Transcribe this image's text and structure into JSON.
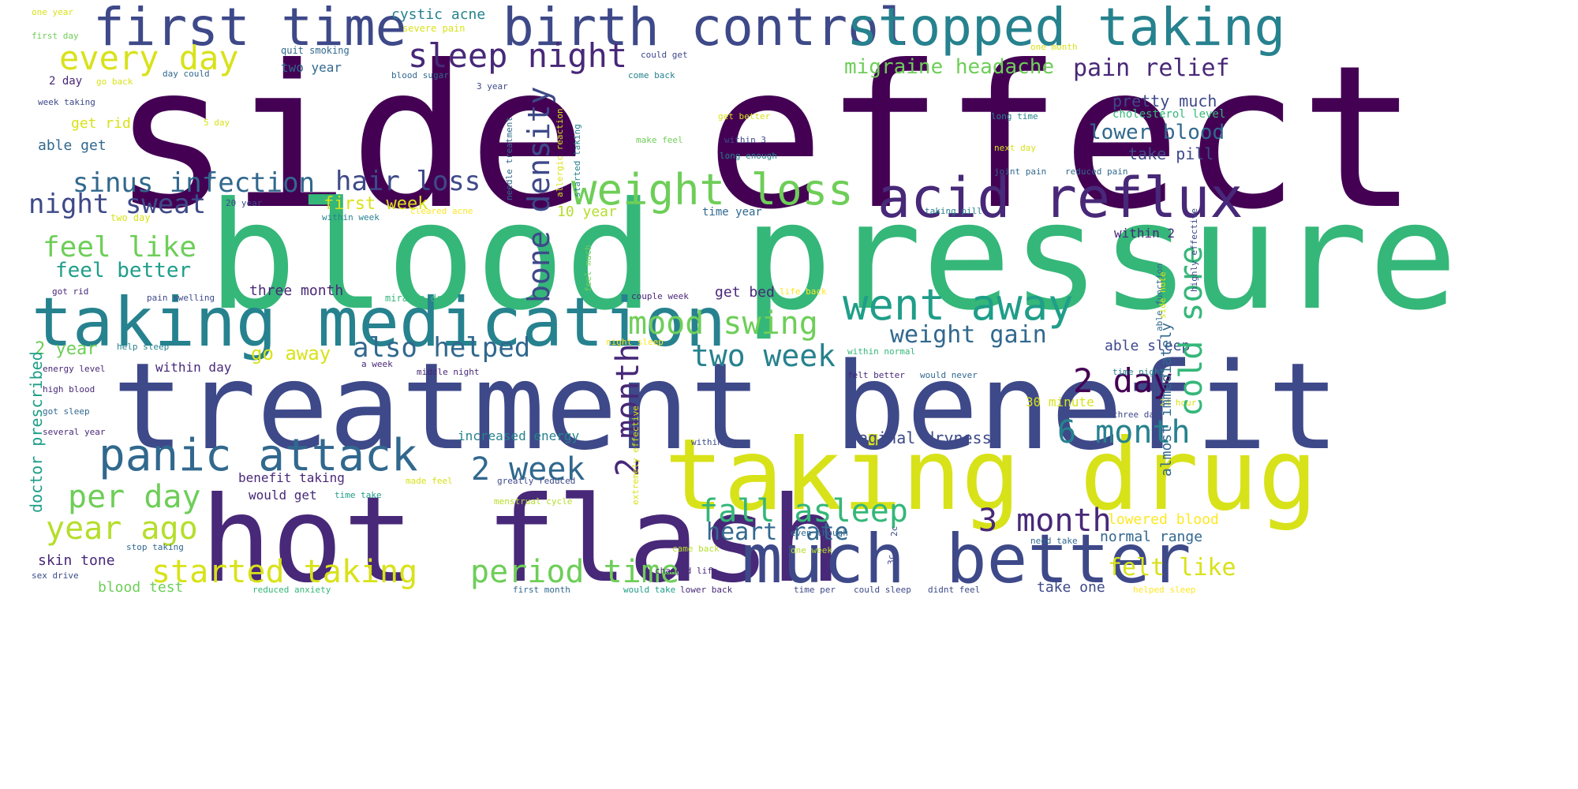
{
  "words": {
    "side_effect": "side effect",
    "blood_pressure": "blood pressure",
    "treatment_benefit": "treatment benefit",
    "hot_flash": "hot flash",
    "taking_drug": "taking drug",
    "much_better": "much better",
    "taking_medication": "taking medication",
    "first_time": "first time",
    "birth_control": "birth control",
    "stopped_taking": "stopped taking",
    "acid_reflux": "acid reflux",
    "weight_loss": "weight loss",
    "panic_attack": "panic attack",
    "went_away": "went away",
    "sleep_night": "sleep night",
    "every_day": "every day",
    "sinus_infection": "sinus infection",
    "hair_loss": "hair loss",
    "night_sweat": "night sweat",
    "feel_like": "feel like",
    "feel_better": "feel better",
    "mood_swing": "mood swing",
    "also_helped": "also helped",
    "two_week": "two week",
    "weight_gain": "weight gain",
    "two_day": "2 day",
    "six_month": "6 month",
    "three_month": "3 month",
    "two_week_num": "2 week",
    "per_day": "per day",
    "year_ago": "year ago",
    "started_taking": "started taking",
    "period_time": "period time",
    "fall_asleep": "fall asleep",
    "heart_rate": "heart rate",
    "felt_like": "felt like",
    "migraine_headache": "migraine headache",
    "pain_relief": "pain relief",
    "pretty_much": "pretty much",
    "lower_blood": "lower blood",
    "take_pill": "take pill",
    "cholesterol_level": "cholesterol level",
    "bone_density": "bone density",
    "two_month": "2 month",
    "cold_sore": "cold sore",
    "first_week": "first week",
    "two_year": "2 year",
    "go_away": "go away",
    "within_day": "within day",
    "able_sleep": "able sleep",
    "increased_energy": "increased energy",
    "vaginal_dryness": "vaginal dryness",
    "benefit_taking": "benefit taking",
    "would_get": "would get",
    "lowered_blood": "lowered blood",
    "normal_range": "normal range",
    "cystic_acne": "cystic acne",
    "severe_pain": "severe pain",
    "two_year_word": "two year",
    "get_rid": "get rid",
    "able_get": "able get",
    "three_month_word": "three month",
    "get_bed": "get bed",
    "skin_tone": "skin tone",
    "blood_test": "blood test",
    "doctor_prescribed": "doctor prescribed",
    "almost_immediately": "almost immediately",
    "thirty_minute": "30 minute",
    "within_2": "within 2",
    "ten_year": "10 year",
    "time_year": "time year",
    "take_one": "take one",
    "one_year": "one year",
    "first_day": "first day",
    "quit_smoking": "quit smoking",
    "blood_sugar": "blood sugar",
    "could_get": "could get",
    "come_back": "come back",
    "one_month": "one month",
    "go_back": "go back",
    "two_day_small": "2 day",
    "day_could": "day could",
    "three_year": "3 year",
    "week_taking": "week taking",
    "five_day": "5 day",
    "get_better": "get better",
    "long_time": "long time",
    "make_feel": "make feel",
    "within_3": "within 3",
    "long_enough": "long enough",
    "next_day": "next day",
    "joint_pain": "joint pain",
    "reduced_pain": "reduced pain",
    "taking_pill": "taking pill",
    "cleared_acne": "cleared acne",
    "within_week": "within week",
    "twenty_year": "20 year",
    "two_day_word": "two day",
    "life_back": "life back",
    "couple_week": "couple week",
    "miracle_drug": "miracle drug",
    "pain_swelling": "pain swelling",
    "got_rid": "got rid",
    "energy_level": "energy level",
    "high_blood": "high blood",
    "got_sleep": "got sleep",
    "several_year": "several year",
    "help_sleep": "help sleep",
    "middle_night": "middle night",
    "a_week": "a week",
    "night_sleep": "night sleep",
    "felt_better": "felt better",
    "would_never": "would never",
    "within_normal": "within normal",
    "time_night": "time night",
    "within_hour": "within hour",
    "three_day": "three day",
    "twentyfour_hour": "24 hour",
    "side_note": "side note",
    "able_function": "able function",
    "highly_effective": "highly effective",
    "feel_much": "feel much",
    "stop_taking": "stop taking",
    "sex_drive": "sex drive",
    "made_feel": "made feel",
    "time_take": "time take",
    "greatly_reduced": "greatly reduced",
    "menstrual_cycle": "menstrual cycle",
    "even_though": "even though",
    "one_week": "one week",
    "came_back": "came back",
    "need_take": "need take",
    "changed_life": "changed life",
    "reduced_anxiety": "reduced anxiety",
    "first_month": "first month",
    "would_take": "would take",
    "lower_back": "lower back",
    "time_per": "time per",
    "could_sleep": "could sleep",
    "didnt_feel": "didnt feel",
    "helped_sleep": "helped sleep",
    "extremely_effective": "extremely effective",
    "allergic_reaction": "allergic reaction",
    "started_taking_v": "started taking",
    "needle_treatment": "needle treatment",
    "three_c": "3c",
    "two_c": "2c",
    "hr_pain": "hr pain",
    "day_day": "day day"
  },
  "colors": {
    "viridis": [
      "#440154",
      "#482878",
      "#3e4989",
      "#31688e",
      "#26828e",
      "#1f9e89",
      "#35b779",
      "#6ece58",
      "#b5de2b",
      "#d8e219",
      "#fde725"
    ]
  }
}
